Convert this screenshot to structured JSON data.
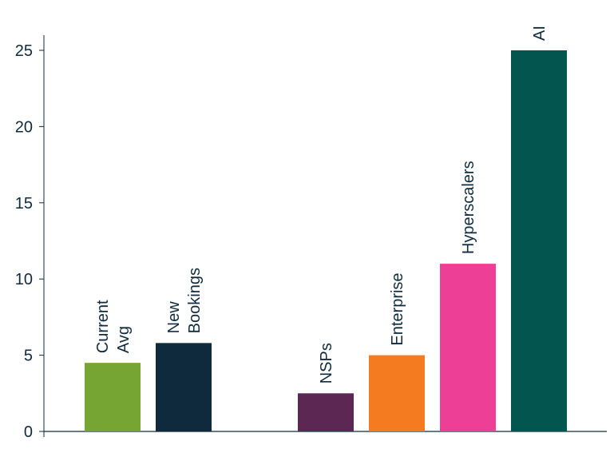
{
  "chart_data": {
    "type": "bar",
    "title": "",
    "xlabel": "",
    "ylabel": "",
    "ylim": [
      0,
      25
    ],
    "yticks": [
      0,
      5,
      10,
      15,
      20,
      25
    ],
    "grid": false,
    "categories": [
      {
        "label": [
          "Current",
          "Avg"
        ],
        "value": 4.5,
        "color": "#76a533"
      },
      {
        "label": [
          "New",
          "Bookings"
        ],
        "value": 5.8,
        "color": "#0f2a3c"
      },
      {
        "label": [],
        "value": null,
        "color": null
      },
      {
        "label": [
          "NSPs"
        ],
        "value": 2.5,
        "color": "#5c2752"
      },
      {
        "label": [
          "Enterprise"
        ],
        "value": 5.0,
        "color": "#f47b20"
      },
      {
        "label": [
          "Hyperscalers"
        ],
        "value": 11.0,
        "color": "#ec3f95"
      },
      {
        "label": [
          "AI"
        ],
        "value": 25.0,
        "color": "#02564f"
      }
    ],
    "axis_color": "#0f2a3c"
  }
}
